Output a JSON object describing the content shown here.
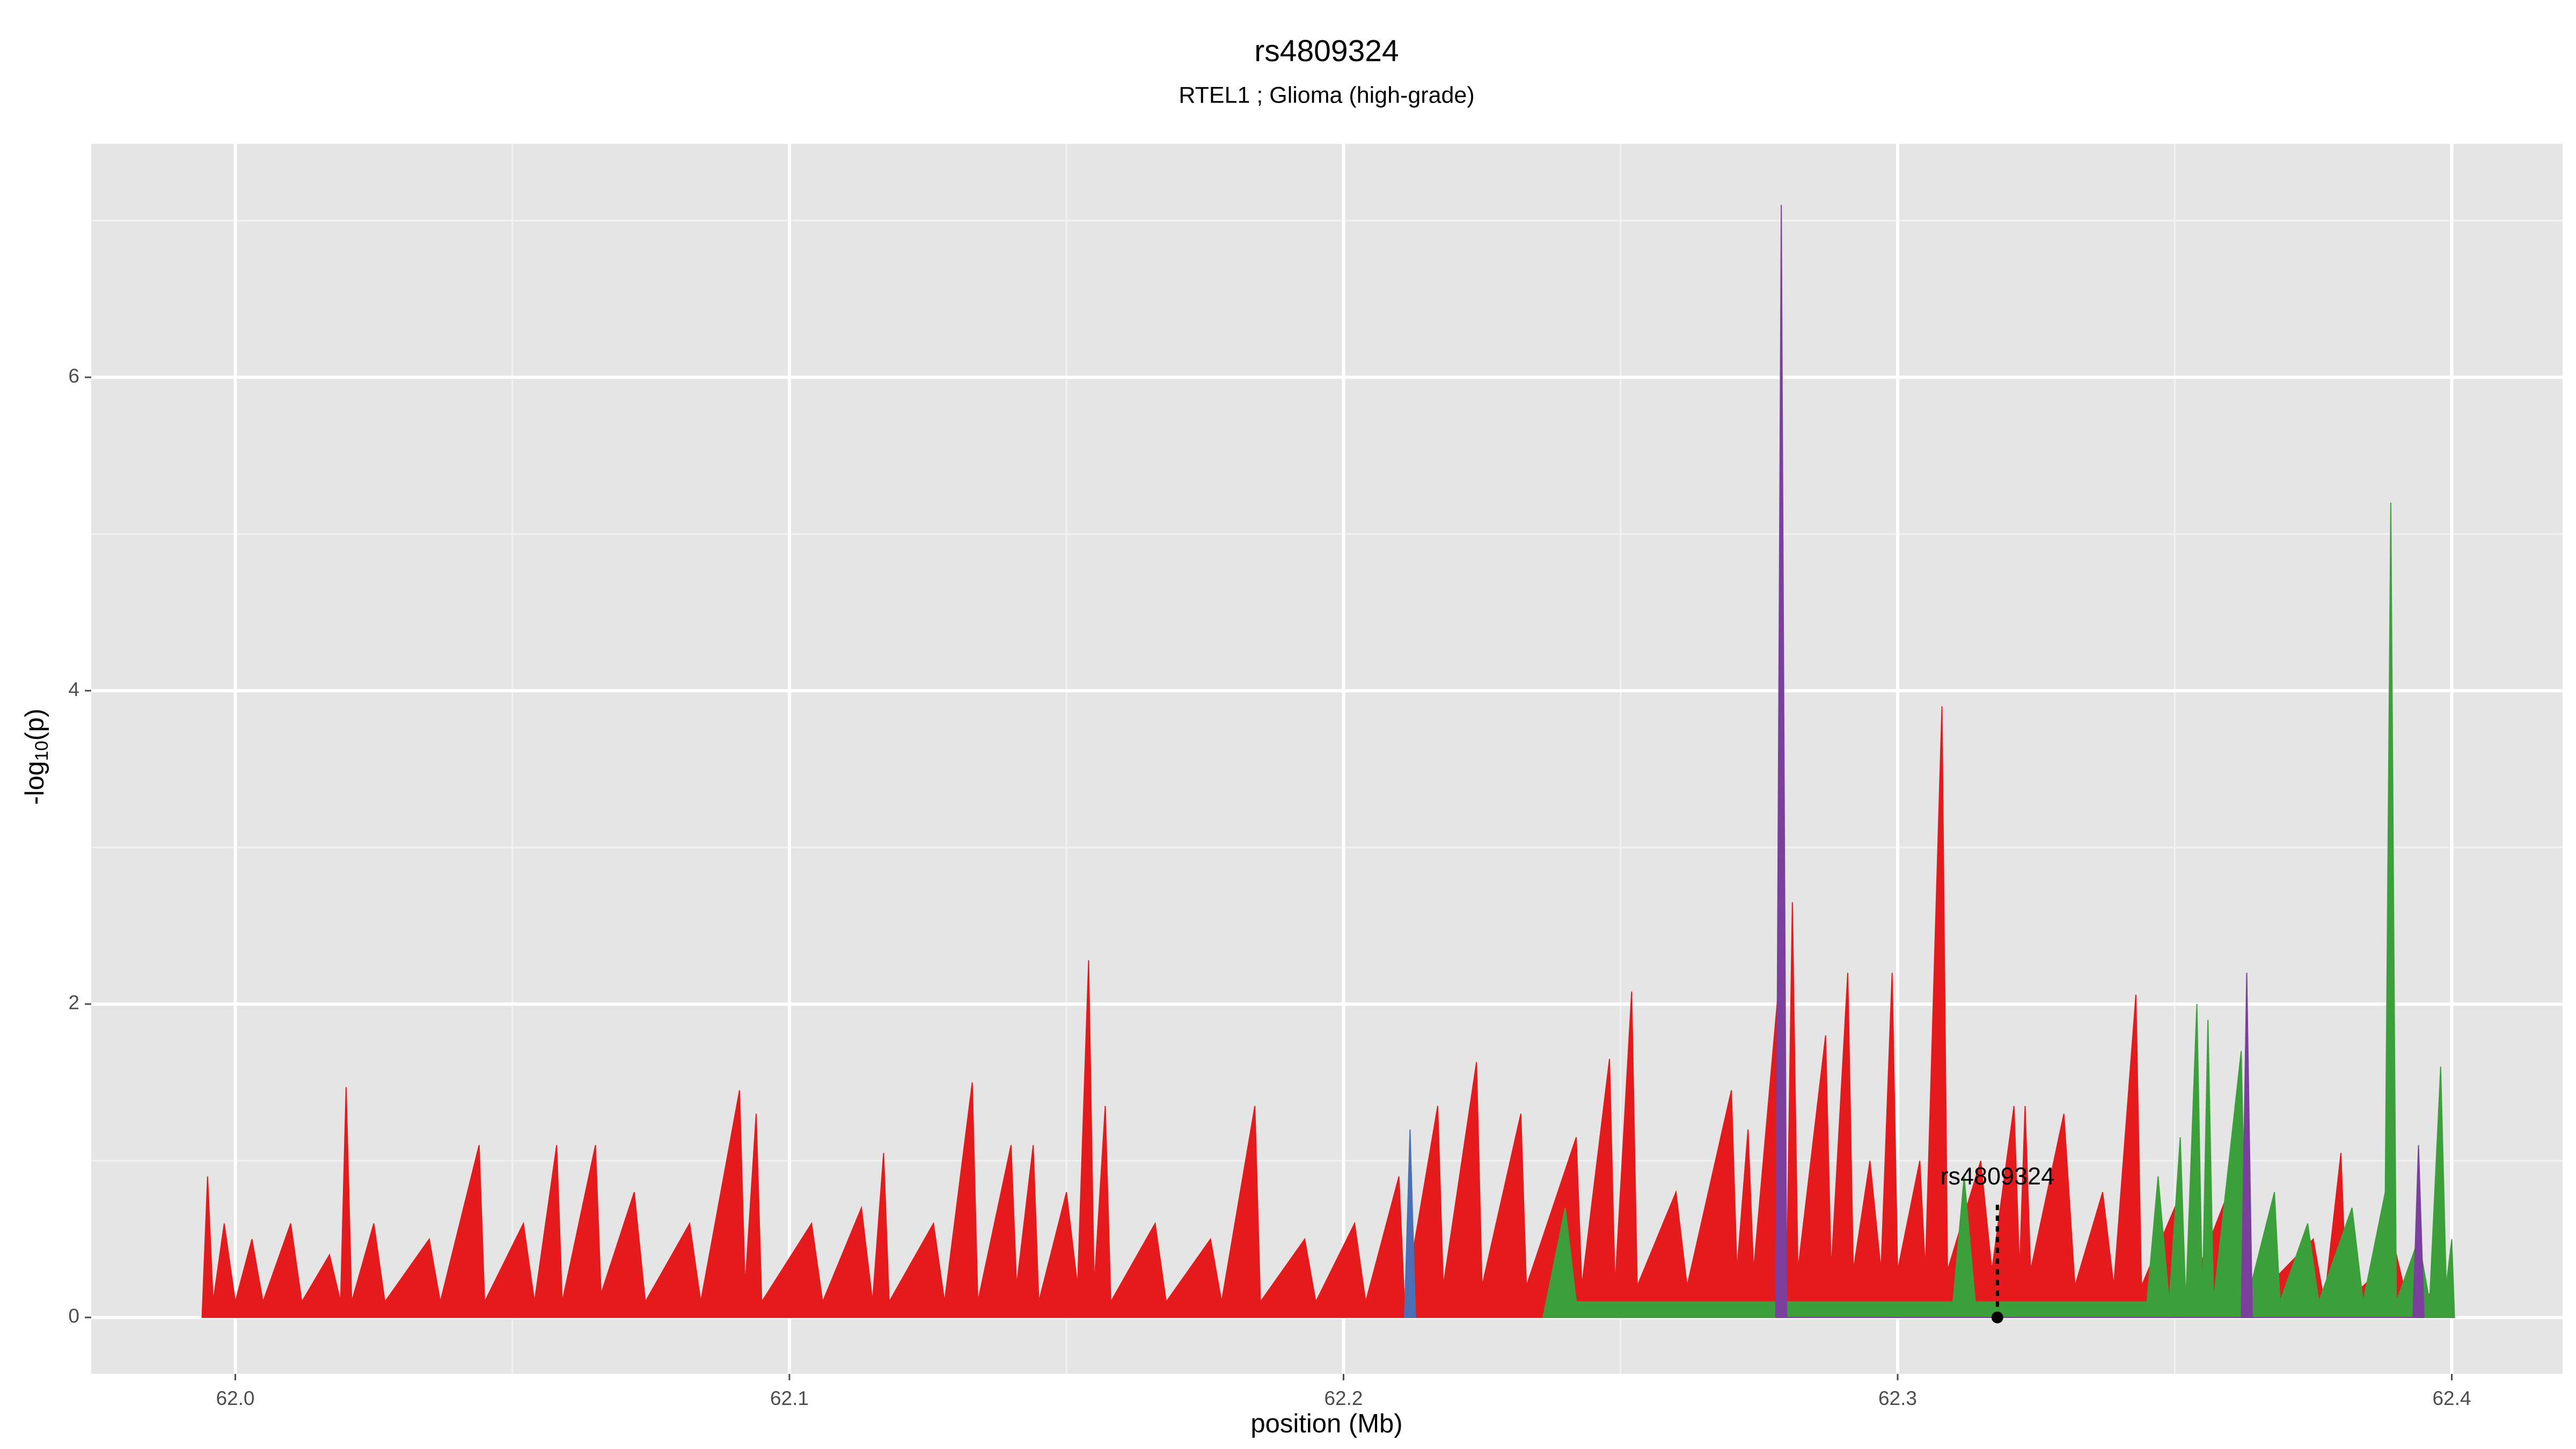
{
  "chart_data": {
    "type": "area",
    "title": "rs4809324",
    "subtitle": "RTEL1 ; Glioma (high-grade)",
    "xlabel": "position (Mb)",
    "ylabel": [
      "-log",
      "10",
      "(p)"
    ],
    "xlim": [
      61.974,
      62.42
    ],
    "ylim": [
      -0.36,
      7.49
    ],
    "xticks": [
      {
        "value": 62,
        "label": "62.0"
      },
      62.1,
      62.2,
      62.3,
      62.4
    ],
    "yticks": [
      0,
      2,
      4,
      6
    ],
    "xminor": [
      62.05,
      62.15,
      62.25,
      62.35
    ],
    "yminor": [
      1,
      3,
      5,
      7
    ],
    "grid": true,
    "series": [
      {
        "color": "#e41a1c",
        "x": [
          61.994,
          61.995,
          61.996,
          61.998,
          62.0,
          62.003,
          62.005,
          62.01,
          62.012,
          62.017,
          62.019,
          62.02,
          62.021,
          62.025,
          62.027,
          62.035,
          62.037,
          62.044,
          62.045,
          62.052,
          62.054,
          62.058,
          62.059,
          62.065,
          62.066,
          62.072,
          62.074,
          62.082,
          62.084,
          62.091,
          62.092,
          62.094,
          62.095,
          62.104,
          62.106,
          62.113,
          62.115,
          62.117,
          62.118,
          62.126,
          62.128,
          62.133,
          62.134,
          62.14,
          62.141,
          62.144,
          62.145,
          62.15,
          62.152,
          62.154,
          62.155,
          62.157,
          62.158,
          62.166,
          62.168,
          62.176,
          62.178,
          62.184,
          62.185,
          62.193,
          62.195,
          62.202,
          62.204,
          62.21,
          62.211,
          62.217,
          62.218,
          62.224,
          62.225,
          62.232,
          62.233,
          62.242,
          62.243,
          62.248,
          62.249,
          62.252,
          62.253,
          62.26,
          62.262,
          62.27,
          62.271,
          62.273,
          62.274,
          62.279,
          62.28,
          62.281,
          62.282,
          62.287,
          62.288,
          62.291,
          62.292,
          62.295,
          62.297,
          62.299,
          62.3,
          62.304,
          62.305,
          62.308,
          62.309,
          62.315,
          62.317,
          62.321,
          62.322,
          62.323,
          62.324,
          62.33,
          62.332,
          62.337,
          62.339,
          62.343,
          62.344,
          62.35,
          62.352,
          62.363,
          62.364,
          62.375,
          62.377,
          62.38,
          62.381,
          62.39,
          62.392,
          62.4,
          62.4005
        ],
        "values": [
          0,
          0.9,
          0.1,
          0.6,
          0.1,
          0.5,
          0.1,
          0.6,
          0.1,
          0.4,
          0.1,
          1.47,
          0.1,
          0.6,
          0.1,
          0.5,
          0.1,
          1.1,
          0.1,
          0.6,
          0.1,
          1.1,
          0.1,
          1.1,
          0.15,
          0.8,
          0.1,
          0.6,
          0.1,
          1.45,
          0.2,
          1.3,
          0.1,
          0.6,
          0.1,
          0.7,
          0.1,
          1.05,
          0.1,
          0.6,
          0.1,
          1.5,
          0.1,
          1.1,
          0.2,
          1.1,
          0.1,
          0.8,
          0.2,
          2.28,
          0.2,
          1.35,
          0.1,
          0.6,
          0.1,
          0.5,
          0.1,
          1.35,
          0.1,
          0.5,
          0.1,
          0.6,
          0.1,
          0.9,
          0.1,
          1.35,
          0.2,
          1.63,
          0.2,
          1.3,
          0.2,
          1.15,
          0.2,
          1.65,
          0.2,
          2.08,
          0.2,
          0.8,
          0.2,
          1.45,
          0.3,
          1.2,
          0.3,
          2.3,
          0.3,
          2.65,
          0.3,
          1.8,
          0.3,
          2.2,
          0.3,
          1.0,
          0.3,
          2.2,
          0.3,
          1.0,
          0.3,
          3.9,
          0.3,
          1.0,
          0.3,
          1.35,
          0.3,
          1.35,
          0.3,
          1.3,
          0.2,
          0.8,
          0.2,
          2.06,
          0.2,
          0.7,
          0.1,
          1.1,
          0.1,
          0.5,
          0.1,
          1.05,
          0.1,
          0.4,
          0.1,
          0.2,
          0
        ]
      },
      {
        "color": "#3ca03a",
        "x": [
          62.236,
          62.24,
          62.242,
          62.31,
          62.312,
          62.314,
          62.345,
          62.347,
          62.349,
          62.351,
          62.352,
          62.354,
          62.355,
          62.356,
          62.357,
          62.362,
          62.363,
          62.368,
          62.369,
          62.374,
          62.376,
          62.382,
          62.384,
          62.388,
          62.389,
          62.39,
          62.394,
          62.396,
          62.398,
          62.399,
          62.4,
          62.4005
        ],
        "values": [
          0,
          0.7,
          0.1,
          0.1,
          0.9,
          0.1,
          0.1,
          0.9,
          0.1,
          1.15,
          0.1,
          2.0,
          0.1,
          1.9,
          0.1,
          1.7,
          0.1,
          0.8,
          0.1,
          0.6,
          0.1,
          0.7,
          0.1,
          0.8,
          5.2,
          0.1,
          0.5,
          0.1,
          1.6,
          0.2,
          0.5,
          0
        ]
      },
      {
        "color": "#7b3f9e",
        "x": [
          62.278,
          62.279,
          62.28,
          62.362,
          62.363,
          62.364,
          62.393,
          62.394,
          62.395
        ],
        "values": [
          0,
          7.1,
          0,
          0,
          2.2,
          0,
          0,
          1.1,
          0
        ]
      },
      {
        "color": "#4a6fb5",
        "x": [
          62.211,
          62.212,
          62.213
        ],
        "values": [
          0,
          1.2,
          0
        ]
      }
    ],
    "annotation": {
      "text": "rs4809324",
      "x": 62.318,
      "y": 0
    }
  }
}
